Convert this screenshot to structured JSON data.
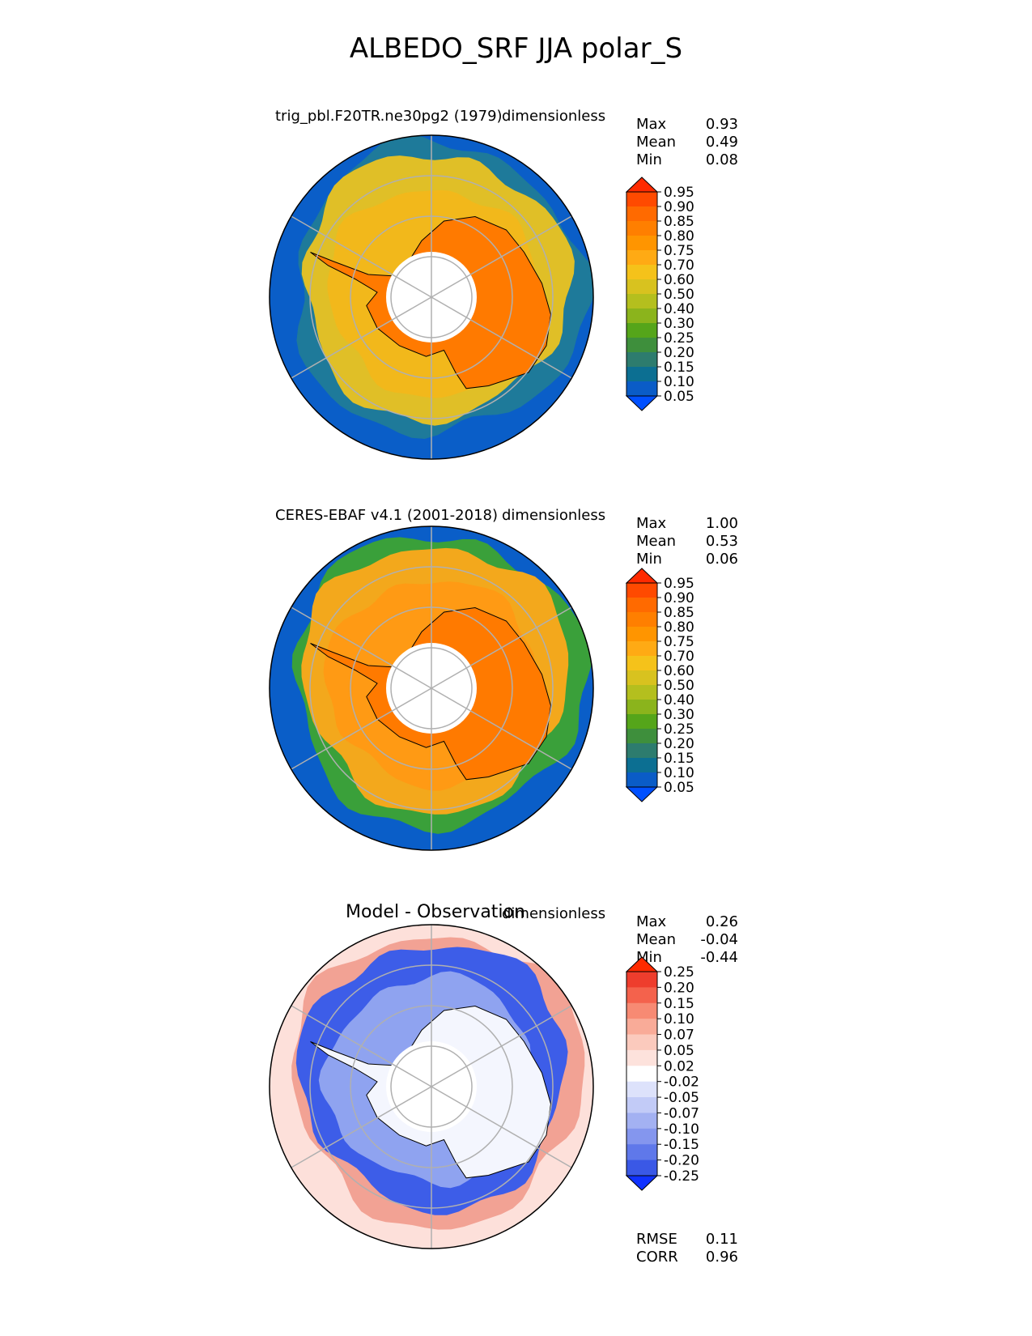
{
  "title": "ALBEDO_SRF JJA polar_S",
  "panels": [
    {
      "id": "test",
      "title": "trig_pbl.F20TR.ne30pg2 (1979)",
      "units": "dimensionless",
      "stats": [
        {
          "label": "Max",
          "value": "0.93"
        },
        {
          "label": "Mean",
          "value": "0.49"
        },
        {
          "label": "Min",
          "value": "0.08"
        }
      ],
      "colorbar": {
        "ticks": [
          "0.95",
          "0.90",
          "0.85",
          "0.80",
          "0.75",
          "0.70",
          "0.60",
          "0.50",
          "0.40",
          "0.30",
          "0.25",
          "0.20",
          "0.15",
          "0.10",
          "0.05"
        ],
        "colors": [
          "#ff2a00",
          "#ff4a00",
          "#ff6a00",
          "#ff7f00",
          "#ff9500",
          "#ffaa14",
          "#f5c21a",
          "#d8c21f",
          "#b4bf1e",
          "#8bb41c",
          "#55a51a",
          "#3e8f3c",
          "#2d7c6e",
          "#0c6f92",
          "#0a5cc7",
          "#0050ff"
        ]
      },
      "regions": {
        "coast": "#0a5ec8",
        "ocean_mid": "#1e7a9a",
        "ice_pack": "#e0bf27",
        "ice_inner": "#f2b81b",
        "continent": "#ff7a00"
      }
    },
    {
      "id": "ref",
      "title": "CERES-EBAF v4.1 (2001-2018)",
      "units": "dimensionless",
      "stats": [
        {
          "label": "Max",
          "value": "1.00"
        },
        {
          "label": "Mean",
          "value": "0.53"
        },
        {
          "label": "Min",
          "value": "0.06"
        }
      ],
      "colorbar": {
        "ticks": [
          "0.95",
          "0.90",
          "0.85",
          "0.80",
          "0.75",
          "0.70",
          "0.60",
          "0.50",
          "0.40",
          "0.30",
          "0.25",
          "0.20",
          "0.15",
          "0.10",
          "0.05"
        ],
        "colors": [
          "#ff2a00",
          "#ff4a00",
          "#ff6a00",
          "#ff7f00",
          "#ff9500",
          "#ffaa14",
          "#f5c21a",
          "#d8c21f",
          "#b4bf1e",
          "#8bb41c",
          "#55a51a",
          "#3e8f3c",
          "#2d7c6e",
          "#0c6f92",
          "#0a5cc7",
          "#0050ff"
        ]
      },
      "regions": {
        "coast": "#0a5ec8",
        "ocean_mid": "#3aa03a",
        "ice_pack": "#f3a81c",
        "ice_inner": "#ff9a14",
        "continent": "#ff7a00"
      }
    },
    {
      "id": "diff",
      "title": "Model - Observation",
      "units": "dimensionless",
      "stats": [
        {
          "label": "Max",
          "value": "0.26"
        },
        {
          "label": "Mean",
          "value": "-0.04"
        },
        {
          "label": "Min",
          "value": "-0.44"
        }
      ],
      "colorbar": {
        "ticks": [
          "0.25",
          "0.20",
          "0.15",
          "0.10",
          "0.07",
          "0.05",
          "0.02",
          "-0.02",
          "-0.05",
          "-0.07",
          "-0.10",
          "-0.15",
          "-0.20",
          "-0.25"
        ],
        "colors": [
          "#ff2a00",
          "#ee3d2d",
          "#f4624c",
          "#f78a73",
          "#f9ab98",
          "#fbcabd",
          "#fde2dc",
          "#ffffff",
          "#dde2fb",
          "#c2cbf7",
          "#a3b1f2",
          "#8496ee",
          "#5f78ea",
          "#3a58e6",
          "#1032ff"
        ]
      },
      "regions": {
        "coast": "#fde0da",
        "ocean_mid": "#f2a294",
        "ice_pack": "#3d5de8",
        "ice_inner": "#8fa3f0",
        "continent": "#f4f6fe"
      },
      "metrics": [
        {
          "label": "RMSE",
          "value": "0.11"
        },
        {
          "label": "CORR",
          "value": "0.96"
        }
      ]
    }
  ],
  "chart_data": [
    {
      "type": "heatmap",
      "projection": "polar stereographic (south)",
      "title": "trig_pbl.F20TR.ne30pg2 (1979)",
      "units": "dimensionless",
      "max": 0.93,
      "mean": 0.49,
      "min": 0.08,
      "colorbar_levels": [
        0.05,
        0.1,
        0.15,
        0.2,
        0.25,
        0.3,
        0.4,
        0.5,
        0.6,
        0.7,
        0.75,
        0.8,
        0.85,
        0.9,
        0.95
      ]
    },
    {
      "type": "heatmap",
      "projection": "polar stereographic (south)",
      "title": "CERES-EBAF v4.1 (2001-2018)",
      "units": "dimensionless",
      "max": 1.0,
      "mean": 0.53,
      "min": 0.06,
      "colorbar_levels": [
        0.05,
        0.1,
        0.15,
        0.2,
        0.25,
        0.3,
        0.4,
        0.5,
        0.6,
        0.7,
        0.75,
        0.8,
        0.85,
        0.9,
        0.95
      ]
    },
    {
      "type": "heatmap",
      "projection": "polar stereographic (south)",
      "title": "Model - Observation",
      "units": "dimensionless",
      "max": 0.26,
      "mean": -0.04,
      "min": -0.44,
      "rmse": 0.11,
      "corr": 0.96,
      "colorbar_levels": [
        -0.25,
        -0.2,
        -0.15,
        -0.1,
        -0.07,
        -0.05,
        -0.02,
        0.02,
        0.05,
        0.07,
        0.1,
        0.15,
        0.2,
        0.25
      ]
    }
  ]
}
